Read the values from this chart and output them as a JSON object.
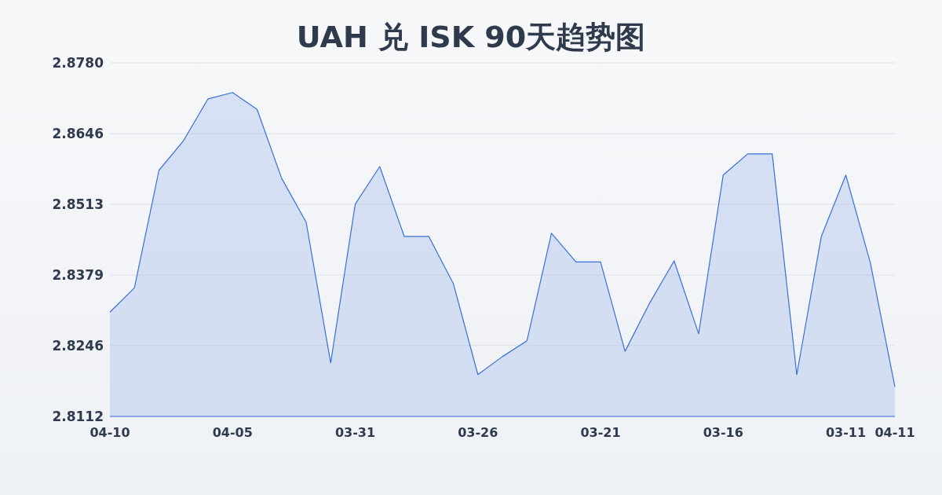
{
  "chart_data": {
    "type": "area",
    "title": "UAH 兑 ISK 90天趋势图",
    "categories": [
      "04-10",
      null,
      null,
      null,
      null,
      "04-05",
      null,
      null,
      null,
      null,
      "03-31",
      null,
      null,
      null,
      null,
      "03-26",
      null,
      null,
      null,
      null,
      "03-21",
      null,
      null,
      null,
      null,
      "03-16",
      null,
      null,
      null,
      null,
      "03-11",
      null,
      "04-11"
    ],
    "series": [
      {
        "color": "#3a6fd8",
        "values": [
          2.8309,
          2.8355,
          2.8577,
          2.8633,
          2.8712,
          2.8724,
          2.8692,
          2.8562,
          2.8479,
          2.8213,
          2.8513,
          2.8584,
          2.8452,
          2.8452,
          2.8363,
          2.8191,
          2.8225,
          2.8255,
          2.8458,
          2.8404,
          2.8404,
          2.8235,
          2.8326,
          2.8406,
          2.8268,
          2.8568,
          2.8608,
          2.8608,
          2.8191,
          2.8452,
          2.8568,
          2.8402,
          2.8168
        ]
      }
    ],
    "ylim": [
      2.8112,
      2.878
    ],
    "yticks": [
      2.8112,
      2.8246,
      2.8379,
      2.8513,
      2.8646,
      {
        "value": 2.878,
        "label": "2.8780"
      }
    ],
    "grid": "y"
  }
}
